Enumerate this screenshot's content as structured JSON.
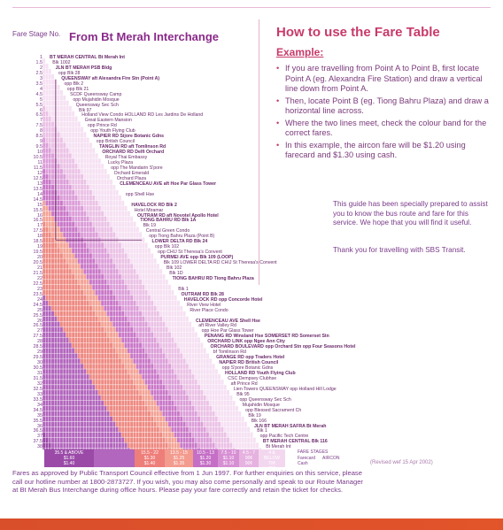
{
  "header": {
    "fare_stage_label": "Fare Stage No.",
    "route_title": "From Bt Merah Interchange"
  },
  "howto": {
    "title": "How to use the Fare Table",
    "example_label": "Example:",
    "steps": [
      "If you are travelling from Point A to Point B, first locate Point A (eg. Alexandra Fire Station) and draw a vertical line down from Point A.",
      "Then, locate Point B (eg. Tiong Bahru Plaza) and draw a horizontal line across.",
      "Where the two lines meet, check the colour band for the correct fares.",
      "In this example, the aircon fare will be $1.20 using farecard and $1.30 using cash."
    ],
    "guide_text": "This guide has been specially prepared to assist you to know the bus route and fare for this service. We hope that you will find it useful.",
    "thanks_text": "Thank you for travelling with SBS Transit."
  },
  "stages": [
    "1",
    "1.5",
    "2",
    "2.5",
    "3",
    "3.5",
    "4",
    "4.5",
    "5",
    "5.5",
    "6",
    "6.5",
    "7",
    "7.5",
    "8",
    "8.5",
    "9",
    "9.5",
    "10",
    "10.5",
    "11",
    "11.5",
    "12",
    "12.5",
    "13",
    "13.5",
    "14",
    "14.5",
    "15",
    "15.5",
    "16",
    "16.5",
    "17",
    "17.5",
    "18",
    "18.5",
    "19",
    "19.5",
    "20",
    "20.5",
    "21",
    "21.5",
    "22",
    "22.5",
    "23",
    "23.5",
    "24",
    "24.5",
    "25",
    "25.5",
    "26",
    "26.5",
    "27",
    "27.5",
    "28",
    "28.5",
    "29",
    "29.5",
    "30",
    "30.5",
    "31",
    "31.5",
    "32",
    "32.5",
    "33",
    "33.5",
    "34",
    "34.5",
    "35",
    "35.5",
    "36",
    "36.5",
    "37",
    "37.5",
    "38"
  ],
  "stops": [
    {
      "t": "BT MERAH CENTRAL Bt Merah Int",
      "b": true
    },
    {
      "t": "Blk 1002",
      "b": false
    },
    {
      "t": "JLN BT MERAH PSB Bldg",
      "b": true
    },
    {
      "t": "opp Blk 28",
      "b": false
    },
    {
      "t": "QUEENSWAY aft Alexandra Fire Stn (Point A)",
      "b": true
    },
    {
      "t": "opp Blk 2",
      "b": false
    },
    {
      "t": "opp Blk 21",
      "b": false
    },
    {
      "t": "SCDF Queensway Camp",
      "b": false
    },
    {
      "t": "opp Mujahidin Mosque",
      "b": false
    },
    {
      "t": "Queensway Sec Sch",
      "b": false
    },
    {
      "t": "Blk 97",
      "b": false
    },
    {
      "t": "Holland View Condo  HOLLAND RD Les Jardins De Holland",
      "b": false
    },
    {
      "t": "Great Eastern Mansion",
      "b": false
    },
    {
      "t": "opp Prince Rd",
      "b": false
    },
    {
      "t": "opp Youth Flying Club",
      "b": false
    },
    {
      "t": "NAPIER RD Sijore Botanic Gdns",
      "b": true
    },
    {
      "t": "opp British Council",
      "b": false
    },
    {
      "t": "TANGLIN RD aft Tomlinson Rd",
      "b": true
    },
    {
      "t": "ORCHARD RD Delfi Orchard",
      "b": true
    },
    {
      "t": "Royal Thai Embassy",
      "b": false
    },
    {
      "t": "Lucky Plaza",
      "b": false
    },
    {
      "t": "opp The Mandarin S'pore",
      "b": false
    },
    {
      "t": "Orchard Emerald",
      "b": false
    },
    {
      "t": "Orchard Plaza",
      "b": false
    },
    {
      "t": "CLEMENCEAU AVE aft Hoe Par Glass Tower",
      "b": true
    },
    {
      "t": "",
      "b": false
    },
    {
      "t": "opp Shell Hse",
      "b": false
    },
    {
      "t": "",
      "b": false
    },
    {
      "t": "HAVELOCK RD Blk 2",
      "b": true
    },
    {
      "t": "Hotel Miramar",
      "b": false
    },
    {
      "t": "OUTRAM RD aft Novotel Apollo Hotel",
      "b": true
    },
    {
      "t": "TIONG BAHRU RD Blk 1A",
      "b": true
    },
    {
      "t": "Blk 19",
      "b": false
    },
    {
      "t": "Central Green Condo",
      "b": false
    },
    {
      "t": "opp Tiong Bahru Plaza (Point B)",
      "b": false
    },
    {
      "t": "LOWER DELTA RD Blk 24",
      "b": true
    },
    {
      "t": "opp Blk 102",
      "b": false
    },
    {
      "t": "opp CHIJ St Theresa's Convent",
      "b": false
    },
    {
      "t": "PURMEI AVE opp Blk 109  (LOOP)",
      "b": true
    },
    {
      "t": "Blk 109  LOWER DELTA RD CHIJ St Theresa's Convent",
      "b": false
    },
    {
      "t": "Blk 102",
      "b": false
    },
    {
      "t": "Blk 1D",
      "b": false
    },
    {
      "t": "TIONG BAHRU RD Tiong Bahru Plaza",
      "b": true
    },
    {
      "t": "",
      "b": false
    },
    {
      "t": "Blk 1",
      "b": false
    },
    {
      "t": "OUTRAM RD Blk 28",
      "b": true
    },
    {
      "t": "HAVELOCK RD opp Concorde Hotel",
      "b": true
    },
    {
      "t": "River View Hotel",
      "b": false
    },
    {
      "t": "River Place Condo",
      "b": false
    },
    {
      "t": "",
      "b": false
    },
    {
      "t": "CLEMENCEAU AVE Shell Hse",
      "b": true
    },
    {
      "t": "aft River Valley Rd",
      "b": false
    },
    {
      "t": "opp Hoe Par Glass Tower",
      "b": false
    },
    {
      "t": "PENANG RD Winsland Hse  SOMERSET RD Somerset Stn",
      "b": true
    },
    {
      "t": "ORCHARD LINK opp Ngee Ann City",
      "b": true
    },
    {
      "t": "ORCHARD BOULEVARD opp Orchard Stn  opp Four Seasons Hotel",
      "b": true
    },
    {
      "t": "bf Tomlinson Rd",
      "b": false
    },
    {
      "t": "GRANGE RD opp Traders Hotel",
      "b": true
    },
    {
      "t": "NAPIER RD British Council",
      "b": true
    },
    {
      "t": "opp S'pore Botanic Gdns",
      "b": false
    },
    {
      "t": "HOLLAND RD Youth Flying Club",
      "b": true
    },
    {
      "t": "CSC Dempsey Clubhse",
      "b": false
    },
    {
      "t": "aft Prince Rd",
      "b": false
    },
    {
      "t": "Lien Towers  QUEENSWAY opp Holland Hill Lodge",
      "b": false
    },
    {
      "t": "Blk 95",
      "b": false
    },
    {
      "t": "opp Queensway Sec Sch",
      "b": false
    },
    {
      "t": "Mujahidin Mosque",
      "b": false
    },
    {
      "t": "opp Blessed Sacrament Ch",
      "b": false
    },
    {
      "t": "Blk 19",
      "b": false
    },
    {
      "t": "Blk 166",
      "b": false
    },
    {
      "t": "JLN BT MERAH SAFRA Bt Merah",
      "b": true
    },
    {
      "t": "Blk 1",
      "b": false
    },
    {
      "t": "opp Pacific Tech Centre",
      "b": false
    },
    {
      "t": "BT MERAH CENTRAL Blk 116",
      "b": true
    },
    {
      "t": "Bt Merah Int",
      "b": false
    }
  ],
  "legend": [
    {
      "top": "35.5 & ABOVE",
      "mid": "$1.60",
      "bot": "$1.40",
      "color": "#9b4aa8"
    },
    {
      "top": "",
      "mid": "",
      "bot": "",
      "color": "#b266bd"
    },
    {
      "top": "15.5 - 22",
      "mid": "$1.30",
      "bot": "$1.40",
      "color": "#ee7e7a"
    },
    {
      "top": "13.5 - 15",
      "mid": "$1.25",
      "bot": "$1.35",
      "color": "#f39b8e"
    },
    {
      "top": "10.5 - 13",
      "mid": "$1.20",
      "bot": "$1.30",
      "color": "#c56fc6"
    },
    {
      "top": "7.5 - 10",
      "mid": "$1.10",
      "bot": "$1.10",
      "color": "#d78fd4"
    },
    {
      "top": "4.5 - 7",
      "mid": "90¢",
      "bot": "90¢",
      "color": "#e6b2e0"
    },
    {
      "top": "4 & BELOW",
      "mid": "70¢",
      "bot": "70¢",
      "color": "#f3d7ef"
    }
  ],
  "fare_key": {
    "stages": "FARE STAGES",
    "farecard": "Farecard",
    "cash": "Cash",
    "aircon": "AIRCON"
  },
  "revised": "(Revised wef 15 Apr 2002)",
  "footer": "Fares as approved by Public Transport Council effective from 1 Jun 1997. For further enquiries on this service, please call our hotline number at 1800-2873727. If you wish, you may also come personally and speak to our Route Manager at Bt Merah Bus Interchange during office hours. Please pay your fare correctly and retain the ticket for checks.",
  "colors": {
    "accent": "#c83a6a",
    "purple": "#8a2a8a",
    "grid": "#a566b0",
    "band": "#e2542a"
  }
}
